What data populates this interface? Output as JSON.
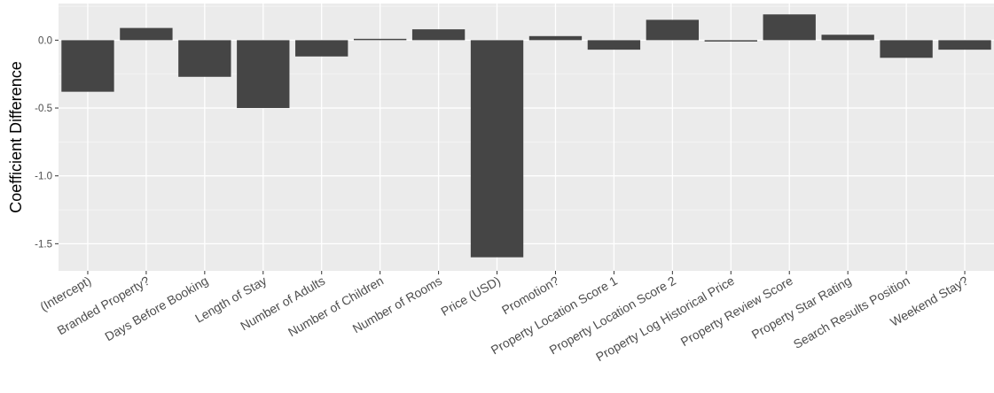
{
  "chart_data": {
    "type": "bar",
    "title": "",
    "xlabel": "",
    "ylabel": "Coefficient Difference",
    "categories": [
      "(Intercept)",
      "Branded Property?",
      "Days Before Booking",
      "Length of Stay",
      "Number of Adults",
      "Number of Children",
      "Number of Rooms",
      "Price (USD)",
      "Promotion?",
      "Property Location Score 1",
      "Property Location Score 2",
      "Property Log Historical Price",
      "Property Review Score",
      "Property Star Rating",
      "Search Results Position",
      "Weekend Stay?"
    ],
    "values": [
      -0.38,
      0.09,
      -0.27,
      -0.5,
      -0.12,
      0.01,
      0.08,
      -1.6,
      0.03,
      -0.07,
      0.15,
      -0.01,
      0.19,
      0.04,
      -0.13,
      -0.07
    ],
    "ylim": [
      -1.7,
      0.27
    ],
    "yticks": [
      0.0,
      -0.5,
      -1.0,
      -1.5
    ],
    "ytick_labels": [
      "0.0",
      "-0.5",
      "-1.0",
      "-1.5"
    ],
    "grid": true,
    "legend": "none",
    "colors": {
      "bar": "#454545",
      "panel": "#ebebeb",
      "grid_major": "#ffffff",
      "grid_minor": "#f4f4f4"
    }
  }
}
